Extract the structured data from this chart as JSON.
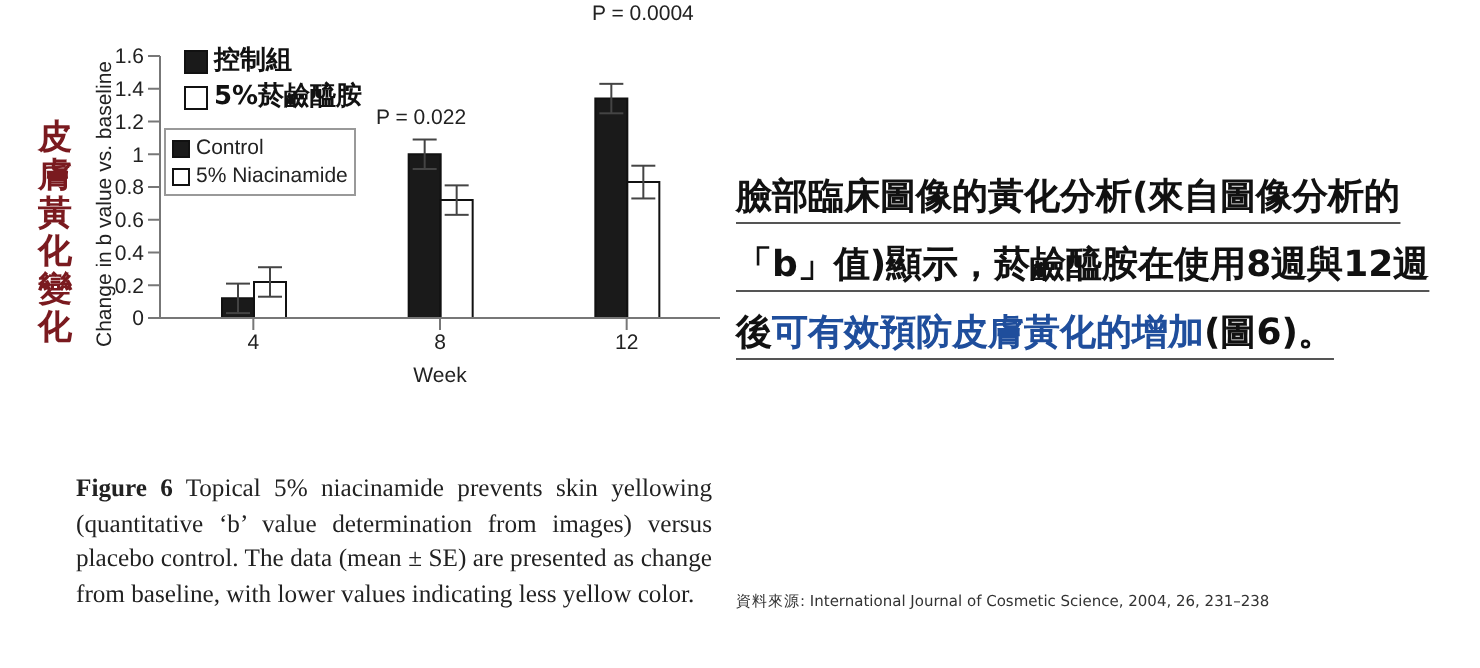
{
  "chart_data": {
    "type": "bar",
    "categories": [
      "4",
      "8",
      "12"
    ],
    "series": [
      {
        "name": "Control",
        "color": "#1a1a1a",
        "values": [
          0.12,
          1.0,
          1.34
        ],
        "errors": [
          0.09,
          0.09,
          0.09
        ]
      },
      {
        "name": "5% Niacinamide",
        "color": "#ffffff",
        "values": [
          0.22,
          0.72,
          0.83
        ],
        "errors": [
          0.09,
          0.09,
          0.1
        ]
      }
    ],
    "ylim": [
      0,
      1.6
    ],
    "yticks": [
      0,
      0.2,
      0.4,
      0.6,
      0.8,
      1,
      1.2,
      1.4,
      1.6
    ],
    "xlabel": "Week",
    "ylabel": "Change in b value vs. baseline",
    "legend": "top left",
    "grid": false,
    "annotations": [
      "控制組",
      "5%菸鹼醯胺",
      "皮膚黃化變化",
      "P = 0.022",
      "P = 0.0004",
      "臉部臨床圖像的黃化分析(來自圖像分析的「b」值)顯示，菸鹼醯胺在使用8週與12週後",
      "可有效預防皮膚黃化的增加",
      "(圖6)。",
      "Figure 6",
      "Topical 5% niacinamide prevents skin yellowing (quantitative ‘b’ value determination from images) versus placebo control. The data (mean ± SE) are presented as change from baseline, with lower values indicating less yellow color.",
      "資料來源: International Journal of Cosmetic Science, 2004, 26, 231–238"
    ]
  }
}
